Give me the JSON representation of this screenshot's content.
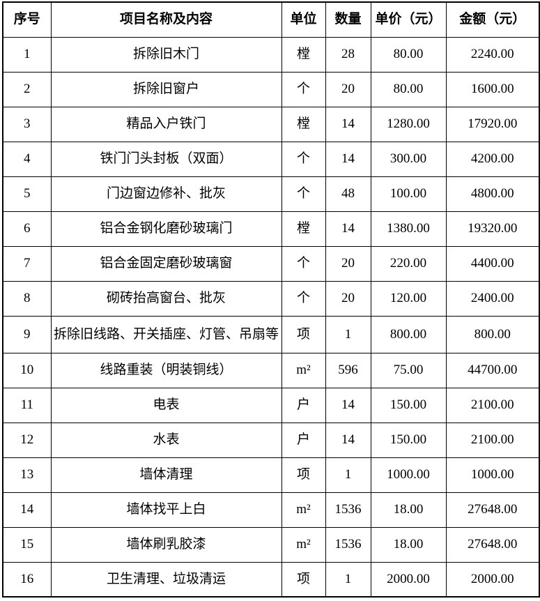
{
  "colors": {
    "border": "#000000",
    "text": "#000000",
    "background": "#ffffff"
  },
  "table": {
    "columns": [
      {
        "key": "index",
        "label": "序号"
      },
      {
        "key": "item",
        "label": "项目名称及内容"
      },
      {
        "key": "unit",
        "label": "单位"
      },
      {
        "key": "qty",
        "label": "数量"
      },
      {
        "key": "price",
        "label": "单价（元）"
      },
      {
        "key": "amount",
        "label": "金额（元）"
      }
    ],
    "rows": [
      {
        "index": "1",
        "item": "拆除旧木门",
        "unit": "樘",
        "qty": "28",
        "price": "80.00",
        "amount": "2240.00"
      },
      {
        "index": "2",
        "item": "拆除旧窗户",
        "unit": "个",
        "qty": "20",
        "price": "80.00",
        "amount": "1600.00"
      },
      {
        "index": "3",
        "item": "精品入户铁门",
        "unit": "樘",
        "qty": "14",
        "price": "1280.00",
        "amount": "17920.00"
      },
      {
        "index": "4",
        "item": "铁门门头封板（双面）",
        "unit": "个",
        "qty": "14",
        "price": "300.00",
        "amount": "4200.00"
      },
      {
        "index": "5",
        "item": "门边窗边修补、批灰",
        "unit": "个",
        "qty": "48",
        "price": "100.00",
        "amount": "4800.00"
      },
      {
        "index": "6",
        "item": "铝合金钢化磨砂玻璃门",
        "unit": "樘",
        "qty": "14",
        "price": "1380.00",
        "amount": "19320.00"
      },
      {
        "index": "7",
        "item": "铝合金固定磨砂玻璃窗",
        "unit": "个",
        "qty": "20",
        "price": "220.00",
        "amount": "4400.00"
      },
      {
        "index": "8",
        "item": "砌砖抬高窗台、批灰",
        "unit": "个",
        "qty": "20",
        "price": "120.00",
        "amount": "2400.00"
      },
      {
        "index": "9",
        "item": "拆除旧线路、开关插座、灯管、吊扇等",
        "unit": "项",
        "qty": "1",
        "price": "800.00",
        "amount": "800.00"
      },
      {
        "index": "10",
        "item": "线路重装（明装铜线）",
        "unit": "m²",
        "qty": "596",
        "price": "75.00",
        "amount": "44700.00"
      },
      {
        "index": "11",
        "item": "电表",
        "unit": "户",
        "qty": "14",
        "price": "150.00",
        "amount": "2100.00"
      },
      {
        "index": "12",
        "item": "水表",
        "unit": "户",
        "qty": "14",
        "price": "150.00",
        "amount": "2100.00"
      },
      {
        "index": "13",
        "item": "墙体清理",
        "unit": "项",
        "qty": "1",
        "price": "1000.00",
        "amount": "1000.00"
      },
      {
        "index": "14",
        "item": "墙体找平上白",
        "unit": "m²",
        "qty": "1536",
        "price": "18.00",
        "amount": "27648.00"
      },
      {
        "index": "15",
        "item": "墙体刷乳胶漆",
        "unit": "m²",
        "qty": "1536",
        "price": "18.00",
        "amount": "27648.00"
      },
      {
        "index": "16",
        "item": "卫生清理、垃圾清运",
        "unit": "项",
        "qty": "1",
        "price": "2000.00",
        "amount": "2000.00"
      }
    ]
  }
}
